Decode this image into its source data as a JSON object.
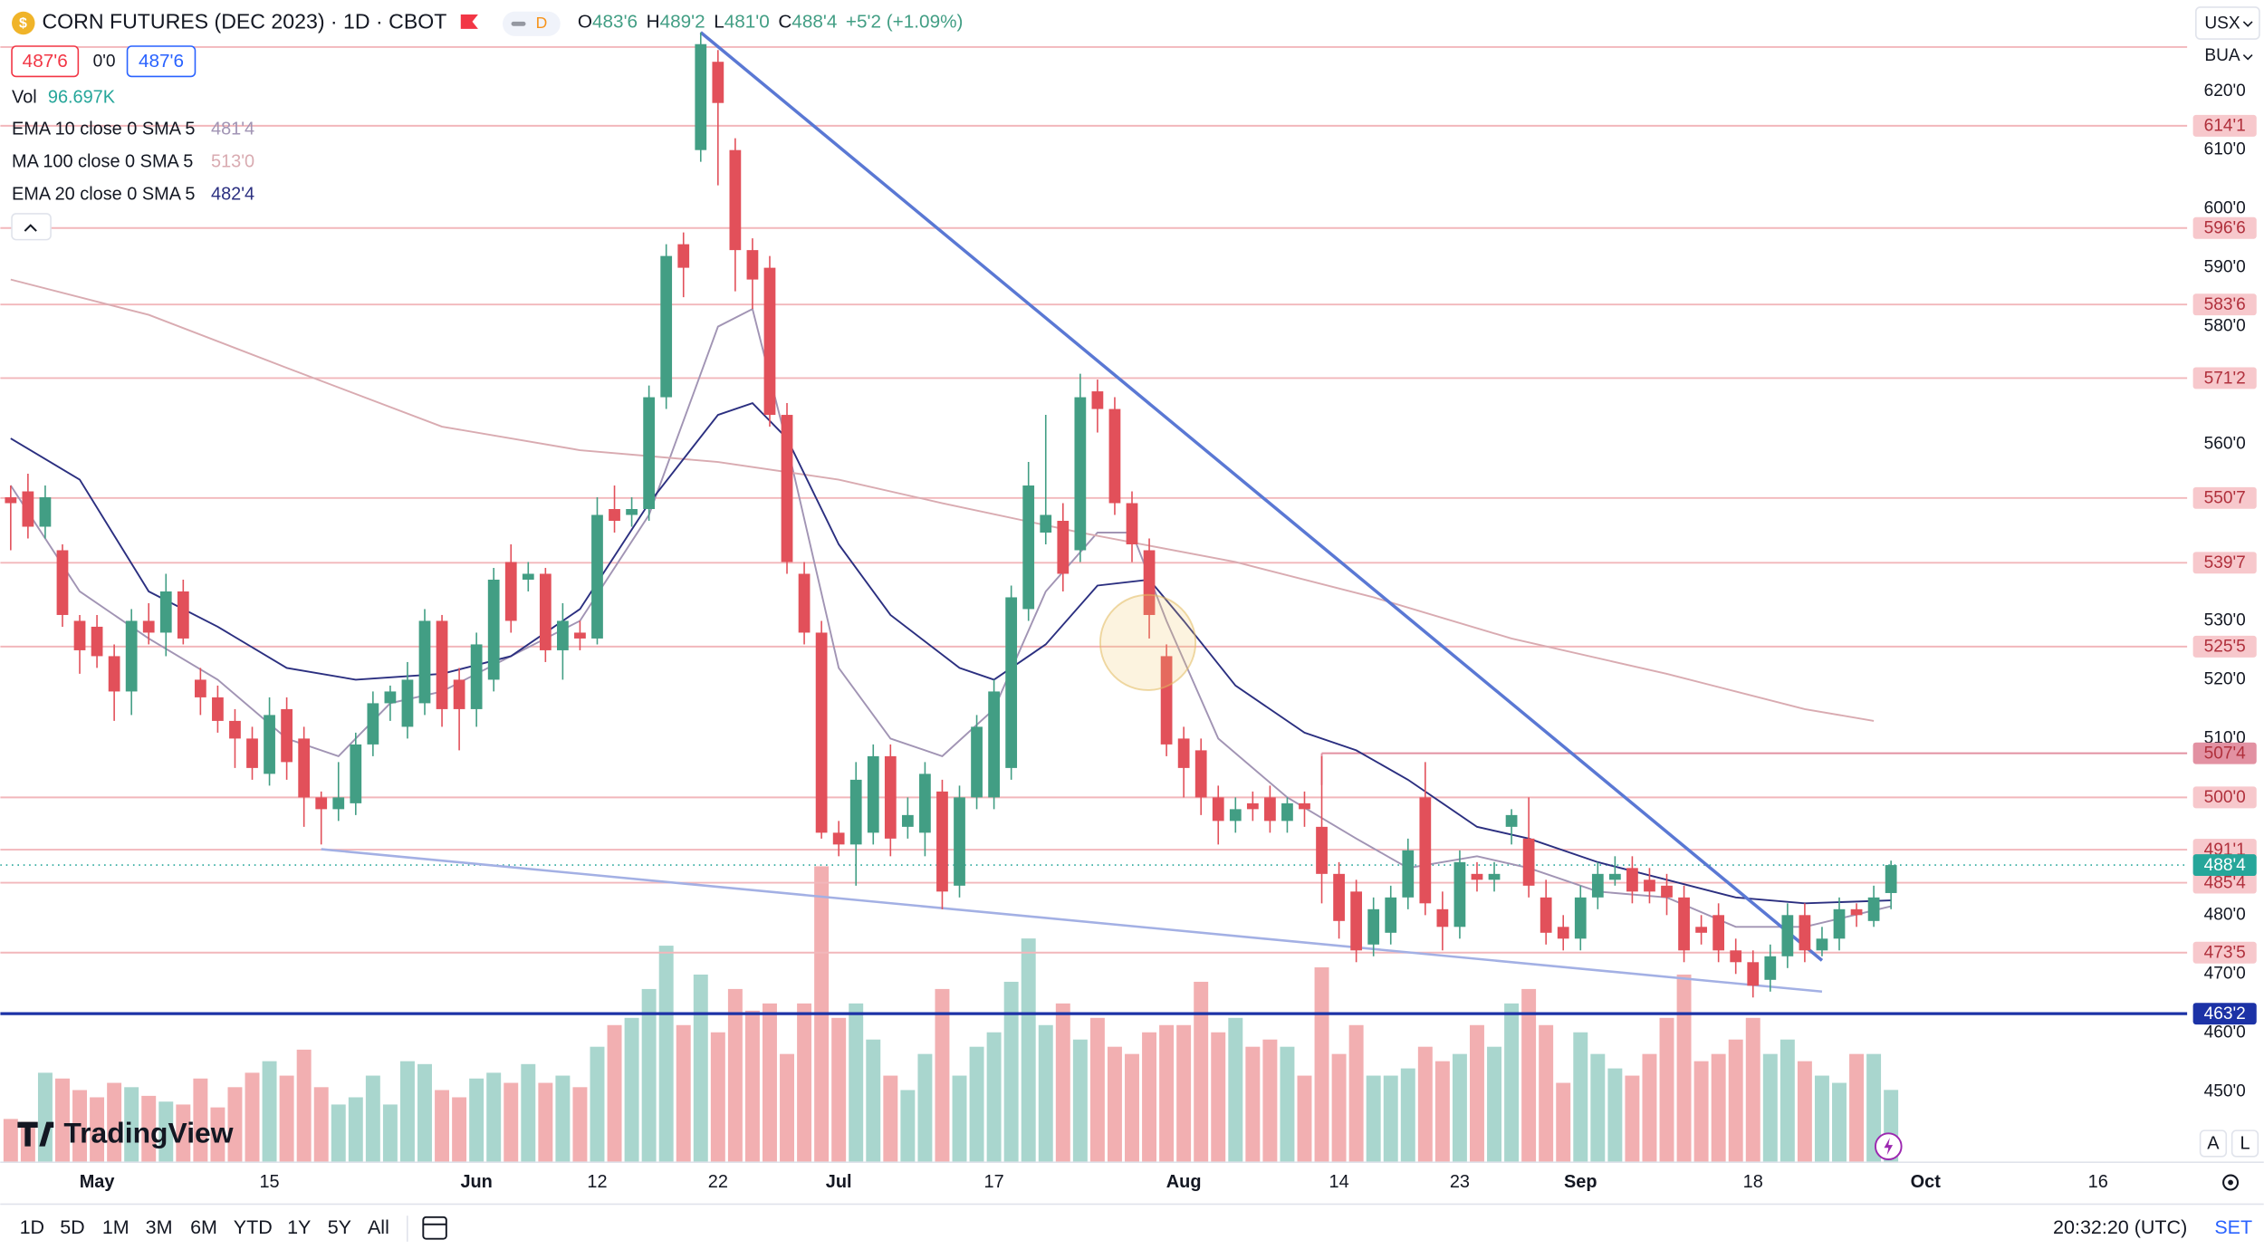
{
  "header": {
    "symbol": "CORN FUTURES (DEC 2023) · 1D · CBOT",
    "interval_badge": "D",
    "ohlc": [
      {
        "key": "O",
        "value": "483'6"
      },
      {
        "key": "H",
        "value": "489'2"
      },
      {
        "key": "L",
        "value": "481'0"
      },
      {
        "key": "C",
        "value": "488'4"
      }
    ],
    "change": "+5'2 (+1.09%)",
    "sell_price": "487'6",
    "spread": "0'0",
    "buy_price": "487'6"
  },
  "currency_menu": "USX",
  "unit_menu": "BUA",
  "logo": "TradingView",
  "scale_buttons": [
    "A",
    "L"
  ],
  "toolbar": {
    "ranges": [
      "1D",
      "5D",
      "1M",
      "3M",
      "6M",
      "YTD",
      "1Y",
      "5Y",
      "All"
    ],
    "clock": "20:32:20 (UTC)",
    "settings": "SET"
  },
  "chart_data": {
    "type": "candlestick",
    "ylim": [
      438,
      635.5
    ],
    "up_color": "#429e84",
    "down_color": "#e2505a",
    "volume_up_color": "#a9d6ce",
    "volume_down_color": "#f2afb1",
    "yticks": [
      {
        "value": 620,
        "label": "620'0"
      },
      {
        "value": 610,
        "label": "610'0"
      },
      {
        "value": 600,
        "label": "600'0"
      },
      {
        "value": 590,
        "label": "590'0"
      },
      {
        "value": 580,
        "label": "580'0"
      },
      {
        "value": 560,
        "label": "560'0"
      },
      {
        "value": 530,
        "label": "530'0"
      },
      {
        "value": 520,
        "label": "520'0"
      },
      {
        "value": 510,
        "label": "510'0"
      },
      {
        "value": 480,
        "label": "480'0"
      },
      {
        "value": 470,
        "label": "470'0"
      },
      {
        "value": 460,
        "label": "460'0"
      },
      {
        "value": 450,
        "label": "450'0"
      }
    ],
    "categories": [
      null,
      null,
      null,
      null,
      null,
      "May",
      null,
      null,
      null,
      null,
      null,
      null,
      null,
      null,
      null,
      "15",
      null,
      null,
      null,
      null,
      null,
      null,
      null,
      null,
      null,
      null,
      null,
      "Jun",
      null,
      null,
      null,
      null,
      null,
      null,
      "12",
      null,
      null,
      null,
      null,
      null,
      null,
      "22",
      null,
      null,
      null,
      null,
      null,
      null,
      "Jul",
      null,
      null,
      null,
      null,
      null,
      null,
      null,
      null,
      "17",
      null,
      null,
      null,
      null,
      null,
      null,
      null,
      null,
      null,
      null,
      "Aug",
      null,
      null,
      null,
      null,
      null,
      null,
      null,
      null,
      "14",
      null,
      null,
      null,
      null,
      null,
      null,
      "23",
      null,
      null,
      null,
      null,
      null,
      null,
      "Sep",
      null,
      null,
      null,
      null,
      null,
      null,
      null,
      null,
      null,
      "18",
      null,
      null,
      null,
      null,
      null,
      null,
      null,
      null,
      null,
      "Oct",
      null,
      null,
      null,
      null,
      null,
      null,
      null,
      null,
      null,
      "16"
    ],
    "open": [
      551,
      552,
      546,
      542,
      530,
      529,
      524,
      518,
      530,
      528,
      535,
      520,
      517,
      513,
      510,
      504,
      515,
      510,
      500,
      498,
      499,
      509,
      516,
      512,
      516,
      530,
      520,
      515,
      520,
      540,
      537,
      538,
      525,
      528,
      527,
      549,
      548,
      549,
      568,
      594,
      610,
      625,
      610,
      593,
      590,
      565,
      538,
      528,
      494,
      492,
      494,
      507,
      495,
      494,
      501,
      485,
      500,
      500,
      505,
      532,
      545,
      547,
      542,
      569,
      566,
      550,
      542,
      524,
      510,
      508,
      500,
      496,
      499,
      500,
      496,
      499,
      495,
      487,
      484,
      475,
      477,
      483,
      500,
      481,
      478,
      487,
      486,
      495,
      493,
      483,
      478,
      476,
      483,
      486,
      488,
      486,
      485,
      483,
      478,
      480,
      474,
      472,
      469,
      473,
      480,
      474,
      476,
      481,
      479,
      483.75,
      null,
      null,
      null,
      null,
      null,
      null,
      null,
      null,
      null,
      null,
      null,
      null
    ],
    "high": [
      553,
      555,
      553,
      543,
      531,
      531,
      526,
      532,
      533,
      538,
      537,
      522,
      519,
      515,
      512,
      517,
      517,
      512,
      501,
      506,
      511,
      518,
      519,
      523,
      532,
      531,
      522,
      528,
      539,
      543,
      540,
      539,
      533,
      530,
      551,
      553,
      551,
      570,
      594,
      596,
      630,
      627,
      612,
      595,
      592,
      567,
      540,
      530,
      496,
      506,
      509,
      509,
      500,
      506,
      503,
      502,
      514,
      520,
      536,
      557,
      565,
      550,
      572,
      571,
      568,
      552,
      544,
      526,
      512,
      510,
      502,
      500,
      501,
      502,
      500,
      501,
      507,
      489,
      486,
      483,
      485,
      493,
      506,
      484,
      491,
      489,
      489,
      498,
      500,
      486,
      480,
      485,
      489,
      490,
      490,
      488,
      487,
      485,
      480,
      482,
      476,
      474,
      475,
      482,
      482,
      478,
      483,
      482,
      485,
      489.25,
      null,
      null,
      null,
      null,
      null,
      null,
      null,
      null,
      null,
      null,
      null,
      null
    ],
    "low": [
      542,
      544,
      544,
      529,
      521,
      522,
      513,
      514,
      526,
      524,
      526,
      514,
      511,
      505,
      503,
      502,
      503,
      495,
      492,
      496,
      497,
      507,
      513,
      510,
      514,
      512,
      508,
      512,
      518,
      528,
      535,
      523,
      520,
      525,
      526,
      545,
      546,
      547,
      566,
      585,
      608,
      604,
      586,
      583,
      563,
      538,
      526,
      493,
      490,
      485,
      492,
      490,
      493,
      490,
      481,
      483,
      498,
      498,
      503,
      530,
      543,
      535,
      540,
      562,
      548,
      540,
      527,
      507,
      500,
      497,
      492,
      494,
      496,
      494,
      494,
      495,
      482,
      476,
      472,
      473,
      475,
      481,
      480,
      474,
      476,
      484,
      484,
      492,
      483,
      475,
      474,
      474,
      481,
      485,
      482,
      482,
      480,
      472,
      475,
      472,
      470,
      466,
      467,
      471,
      472,
      473,
      474,
      478,
      478,
      481,
      null,
      null,
      null,
      null,
      null,
      null,
      null,
      null,
      null,
      null,
      null,
      null
    ],
    "close": [
      550,
      546,
      551,
      531,
      525,
      524,
      518,
      530,
      528,
      535,
      527,
      517,
      513,
      510,
      505,
      514,
      506,
      500,
      498,
      500,
      509,
      516,
      518,
      520,
      530,
      515,
      515,
      526,
      537,
      530,
      538,
      525,
      530,
      527,
      548,
      547,
      549,
      568,
      592,
      590,
      628,
      618,
      593,
      588,
      565,
      540,
      528,
      494,
      492,
      503,
      507,
      493,
      497,
      504,
      484,
      500,
      512,
      518,
      534,
      553,
      548,
      538,
      568,
      566,
      550,
      543,
      531,
      509,
      505,
      500,
      496,
      498,
      498,
      496,
      499,
      498,
      487,
      479,
      474,
      481,
      483,
      491,
      482,
      478,
      489,
      486,
      487,
      497,
      485,
      477,
      476,
      483,
      487,
      487,
      484,
      484,
      483,
      474,
      477,
      474,
      472,
      468,
      473,
      480,
      474,
      476,
      481,
      480,
      483,
      488.5,
      null,
      null,
      null,
      null,
      null,
      null,
      null,
      null,
      null,
      null,
      null,
      null
    ],
    "volume": {
      "name": "Vol",
      "legend_value": "96.697K",
      "values": [
        57900,
        54040,
        119660,
        111940,
        96500,
        86850,
        106150,
        100360,
        88780,
        81060,
        77200,
        111940,
        73340,
        100360,
        119660,
        135100,
        115800,
        150540,
        100360,
        77200,
        86850,
        115800,
        77200,
        135100,
        131240,
        96500,
        86850,
        111940,
        119660,
        106150,
        131240,
        106150,
        115800,
        100360,
        154400,
        183350,
        193000,
        231600,
        289500,
        183350,
        250900,
        173700,
        231600,
        202650,
        212300,
        144750,
        212300,
        395650,
        193000,
        212300,
        164050,
        115800,
        96500,
        144750,
        231600,
        115800,
        154400,
        173700,
        241250,
        299150,
        183350,
        212300,
        164050,
        193000,
        154400,
        144750,
        173700,
        183350,
        183350,
        241250,
        173700,
        193000,
        154400,
        164050,
        154400,
        115800,
        260550,
        144750,
        183350,
        115800,
        115800,
        125450,
        154400,
        135100,
        144750,
        183350,
        154400,
        212300,
        231600,
        183350,
        106150,
        173700,
        144750,
        125450,
        115800,
        144750,
        193000,
        250900,
        135100,
        144750,
        164050,
        193000,
        144750,
        164050,
        135100,
        115800,
        106150,
        144750,
        144750,
        96697,
        null,
        null,
        null,
        null,
        null,
        null,
        null,
        null,
        null,
        null,
        null,
        null
      ]
    },
    "series": [
      {
        "name": "EMA 10 close 0 SMA 5",
        "legend_value": "481'4",
        "color": "#a194b4",
        "x": [
          0,
          4,
          8,
          12,
          16,
          19,
          22,
          25,
          29,
          33,
          37,
          41,
          43,
          45,
          48,
          51,
          54,
          57,
          60,
          63,
          65,
          67,
          70,
          74,
          78,
          81,
          85,
          88,
          92,
          96,
          100,
          104,
          109
        ],
        "values": [
          553,
          535,
          527,
          520,
          510,
          507,
          516,
          518,
          524,
          530,
          548,
          580,
          583,
          560,
          522,
          510,
          507,
          515,
          535,
          545,
          545,
          530,
          510,
          500,
          493,
          488,
          490,
          488,
          484,
          483,
          478,
          478,
          481.5
        ]
      },
      {
        "name": "MA 100 close 0 SMA 5",
        "legend_value": "513'0",
        "color": "#d9abb1",
        "x": [
          0,
          8,
          16,
          25,
          33,
          41,
          48,
          54,
          62,
          71,
          79,
          87,
          96,
          104,
          108
        ],
        "values": [
          588,
          582,
          573,
          563,
          559,
          557,
          554,
          550,
          545,
          540,
          534,
          527,
          521,
          515,
          513
        ]
      },
      {
        "name": "EMA 20 close 0 SMA 5",
        "legend_value": "482'4",
        "color": "#2b2f80",
        "x": [
          0,
          4,
          8,
          12,
          16,
          20,
          25,
          29,
          33,
          37,
          41,
          43,
          45,
          48,
          51,
          55,
          57,
          60,
          63,
          66,
          68,
          71,
          75,
          78,
          81,
          85,
          88,
          92,
          96,
          100,
          104,
          109
        ],
        "values": [
          561,
          554,
          535,
          529,
          522,
          520,
          521,
          524,
          532,
          550,
          565,
          567,
          561,
          543,
          531,
          522,
          520,
          526,
          536,
          537,
          530,
          519,
          511,
          508,
          503,
          495,
          493,
          489,
          486,
          483,
          482,
          482.5
        ]
      }
    ],
    "trendlines": [
      {
        "color": "#5a78d4",
        "x": [
          40,
          105
        ],
        "values": [
          630,
          472.3
        ]
      },
      {
        "color": "#a3b0e4",
        "x": [
          18,
          105
        ],
        "values": [
          491.2,
          467
        ]
      }
    ],
    "level_color": "#f2b7bb",
    "level_label_bg": "#f7c8cc",
    "level_label_color": "#b0303c",
    "levels": [
      {
        "value": 627.5
      },
      {
        "value": 614.125,
        "label": "614'1"
      },
      {
        "value": 596.75,
        "label": "596'6"
      },
      {
        "value": 583.75,
        "label": "583'6"
      },
      {
        "value": 571.25,
        "label": "571'2"
      },
      {
        "value": 550.875,
        "label": "550'7"
      },
      {
        "value": 539.875,
        "label": "539'7"
      },
      {
        "value": 525.625,
        "label": "525'5"
      },
      {
        "value": 507.5,
        "label": "507'4",
        "start_index": 76,
        "color": "#e291a2"
      },
      {
        "value": 500,
        "label": "500'0"
      },
      {
        "value": 491.125,
        "label": "491'1"
      },
      {
        "value": 485.5,
        "label": "485'4"
      },
      {
        "value": 473.625,
        "label": "473'5"
      },
      {
        "value": 463.25,
        "label": "463'2",
        "color": "#1c32a6",
        "label_bg": "#1c32a6",
        "label_color": "#ffffff"
      }
    ],
    "last_price": {
      "value": 488.5,
      "label": "488'4",
      "color": "#26a69a"
    }
  }
}
